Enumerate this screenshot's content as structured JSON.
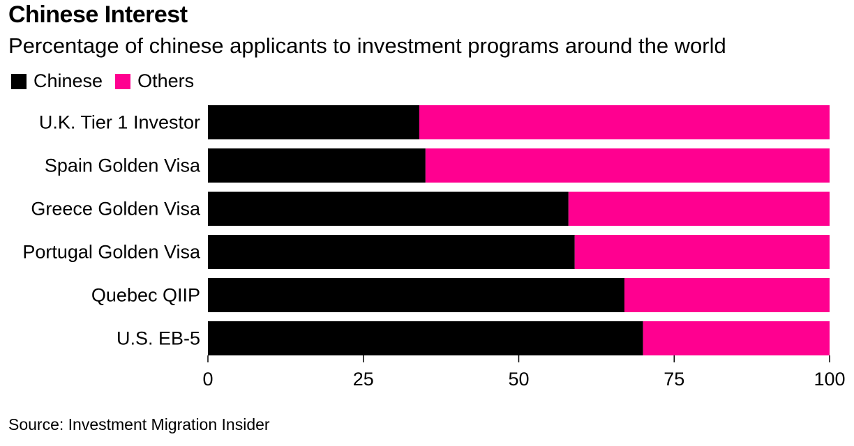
{
  "title": "Chinese Interest",
  "subtitle": "Percentage of chinese applicants to investment programs around the world",
  "source": "Source: Investment Migration Insider",
  "legend": [
    {
      "label": "Chinese",
      "color": "#000000"
    },
    {
      "label": "Others",
      "color": "#ff0090"
    }
  ],
  "chart_data": {
    "type": "bar",
    "orientation": "horizontal",
    "stacked": true,
    "title": "Chinese Interest",
    "subtitle": "Percentage of chinese applicants to investment programs around the world",
    "categories": [
      "U.K. Tier 1 Investor",
      "Spain Golden Visa",
      "Greece Golden Visa",
      "Portugal Golden Visa",
      "Quebec QIIP",
      "U.S. EB-5"
    ],
    "series": [
      {
        "name": "Chinese",
        "color": "#000000",
        "values": [
          34,
          35,
          58,
          59,
          67,
          70
        ]
      },
      {
        "name": "Others",
        "color": "#ff0090",
        "values": [
          66,
          65,
          42,
          41,
          33,
          30
        ]
      }
    ],
    "xlim": [
      0,
      100
    ],
    "xticks": [
      0,
      25,
      50,
      75,
      100
    ],
    "grid": false,
    "legend_position": "top-left"
  }
}
